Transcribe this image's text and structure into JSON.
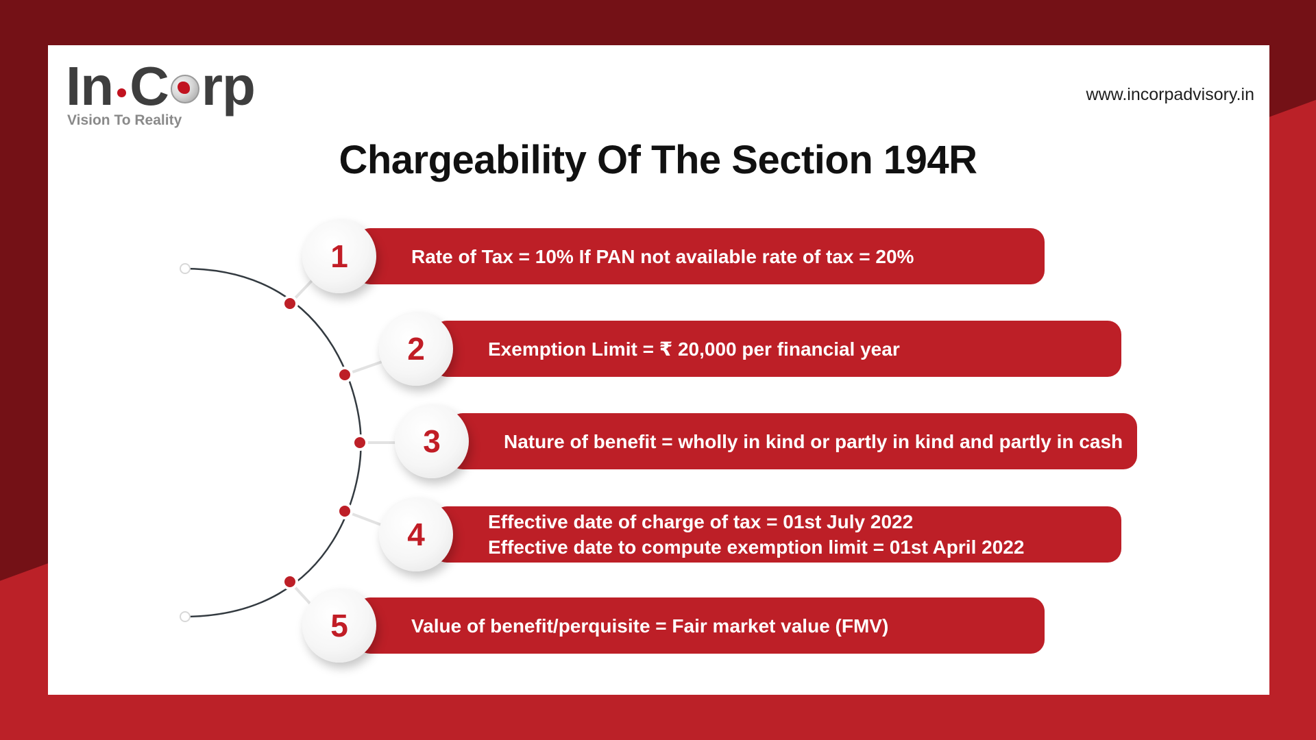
{
  "brand": {
    "logo_in": "In",
    "logo_c": "C",
    "logo_rp": "rp",
    "tagline": "Vision To Reality",
    "website": "www.incorpadvisory.in",
    "colors": {
      "red": "#bd1f27",
      "dark_red": "#741116",
      "grey": "#3e3e3e"
    }
  },
  "title": "Chargeability Of The Section 194R",
  "items": [
    {
      "number": "1",
      "lines": [
        "Rate of Tax = 10% If PAN not available rate of tax = 20%"
      ]
    },
    {
      "number": "2",
      "lines": [
        "Exemption Limit = ₹ 20,000 per financial year"
      ]
    },
    {
      "number": "3",
      "lines": [
        "Nature of benefit = wholly in kind or partly in kind and partly in cash"
      ]
    },
    {
      "number": "4",
      "lines": [
        "Effective date of charge of tax = 01st July 2022",
        "Effective date to compute exemption limit = 01st April 2022"
      ]
    },
    {
      "number": "5",
      "lines": [
        "Value of benefit/perquisite = Fair market value (FMV)"
      ]
    }
  ]
}
